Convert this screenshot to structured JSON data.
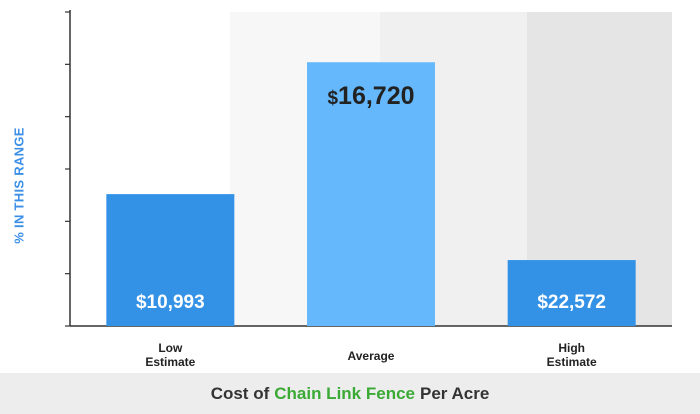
{
  "chart_data": {
    "type": "bar",
    "categories": [
      "Low Estimate",
      "Average",
      "High Estimate"
    ],
    "values": [
      10993,
      16720,
      22572
    ],
    "bar_heights_relative": [
      0.42,
      0.84,
      0.21
    ],
    "data_labels": [
      "$10,993",
      "$16,720",
      "$22,572"
    ],
    "ylabel": "% IN THIS RANGE",
    "title": {
      "prefix": "Cost of",
      "highlight": "Chain Link Fence",
      "suffix": "Per Acre"
    },
    "grid": false,
    "colors": {
      "low": "#3391e6",
      "average": "#64b8fb",
      "high": "#3391e6",
      "highlight_text": "#3aaa35",
      "ylabel_text": "#3b8fe6"
    }
  }
}
